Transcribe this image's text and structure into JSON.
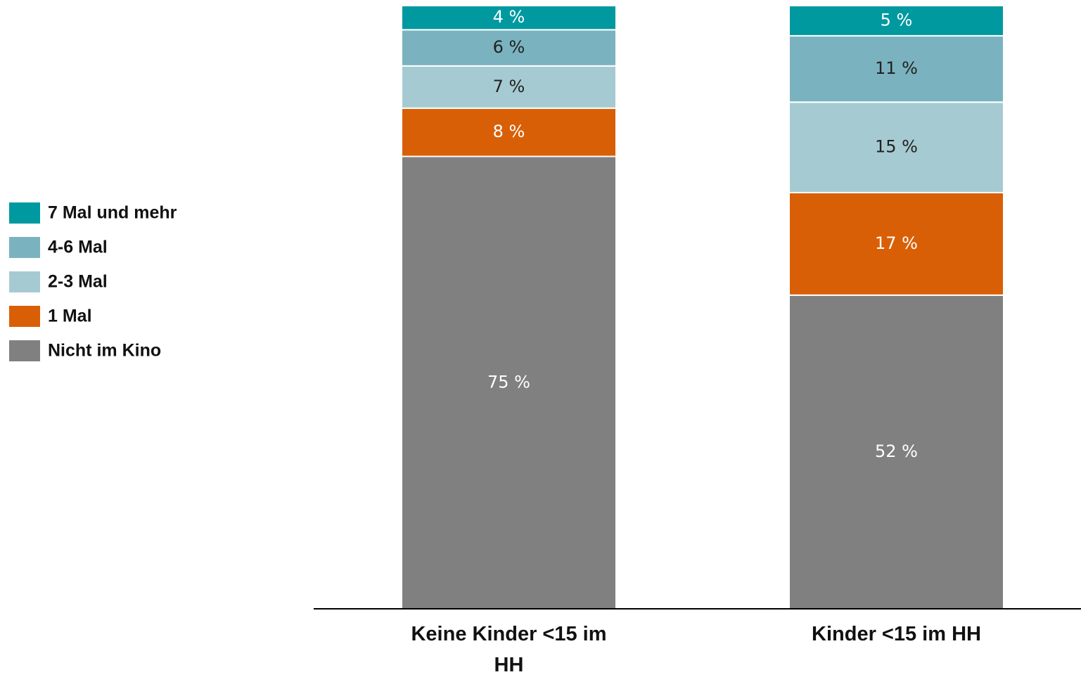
{
  "chart_data": {
    "type": "stacked_bar",
    "categories": [
      "Keine Kinder <15 im HH",
      "Kinder <15 im HH"
    ],
    "ylim": [
      0,
      100
    ],
    "series": [
      {
        "name": "Nicht im Kino",
        "color": "#808080",
        "label_color": "#ffffff",
        "values": [
          75,
          52
        ],
        "value_labels": [
          "75 %",
          "52 %"
        ]
      },
      {
        "name": "1 Mal",
        "color": "#d95f06",
        "label_color": "#ffffff",
        "values": [
          8,
          17
        ],
        "value_labels": [
          "8 %",
          "17 %"
        ]
      },
      {
        "name": "2-3 Mal",
        "color": "#a6cad2",
        "label_color": "#222222",
        "values": [
          7,
          15
        ],
        "value_labels": [
          "7 %",
          "15 %"
        ]
      },
      {
        "name": "4-6 Mal",
        "color": "#7ab3bf",
        "label_color": "#222222",
        "values": [
          6,
          11
        ],
        "value_labels": [
          "6 %",
          "11 %"
        ]
      },
      {
        "name": "7 Mal und mehr",
        "color": "#0099a0",
        "label_color": "#ffffff",
        "values": [
          4,
          5
        ],
        "value_labels": [
          "4 %",
          "5 %"
        ]
      }
    ]
  }
}
